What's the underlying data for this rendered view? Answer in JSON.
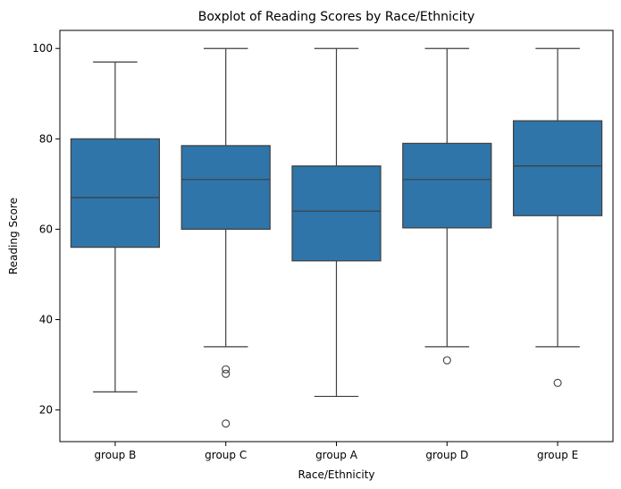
{
  "chart_data": {
    "type": "boxplot",
    "title": "Boxplot of Reading Scores by Race/Ethnicity",
    "xlabel": "Race/Ethnicity",
    "ylabel": "Reading Score",
    "ylim": [
      13,
      104
    ],
    "yticks": [
      20,
      40,
      60,
      80,
      100
    ],
    "grid": false,
    "box_color": "#2f75a9",
    "line_color": "#3f3f3f",
    "categories": [
      "group B",
      "group C",
      "group A",
      "group D",
      "group E"
    ],
    "boxes": [
      {
        "category": "group B",
        "whisker_low": 24,
        "q1": 56,
        "median": 67,
        "q3": 80,
        "whisker_high": 97,
        "outliers": []
      },
      {
        "category": "group C",
        "whisker_low": 34,
        "q1": 60,
        "median": 71,
        "q3": 78.5,
        "whisker_high": 100,
        "outliers": [
          29,
          28,
          17
        ]
      },
      {
        "category": "group A",
        "whisker_low": 23,
        "q1": 53,
        "median": 64,
        "q3": 74,
        "whisker_high": 100,
        "outliers": []
      },
      {
        "category": "group D",
        "whisker_low": 34,
        "q1": 60.3,
        "median": 71,
        "q3": 79,
        "whisker_high": 100,
        "outliers": [
          31
        ]
      },
      {
        "category": "group E",
        "whisker_low": 34,
        "q1": 63,
        "median": 74,
        "q3": 84,
        "whisker_high": 100,
        "outliers": [
          26
        ]
      }
    ]
  }
}
